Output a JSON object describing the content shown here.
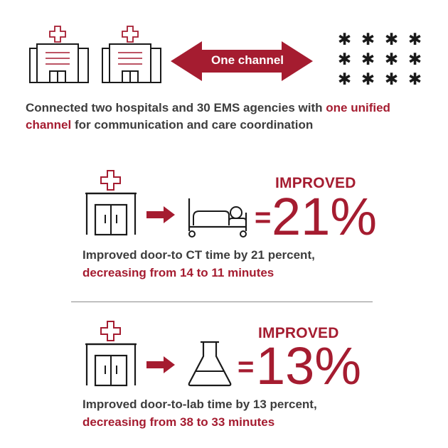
{
  "header": {
    "arrow_label": "One channel",
    "ems_symbol_count": 12,
    "caption_part1": "Connected two hospitals and 30 EMS agencies with ",
    "caption_highlight": "one unified channel",
    "caption_part2": " for communication and care coordination"
  },
  "stats": [
    {
      "improved_label": "IMPROVED",
      "equals": "=",
      "percent": "21%",
      "line1": "Improved door-to CT time by 21 percent,",
      "line2": "decreasing from 14 to 11 minutes"
    },
    {
      "improved_label": "IMPROVED",
      "equals": "=",
      "percent": "13%",
      "line1": "Improved door-to-lab time by 13 percent,",
      "line2": "decreasing from 38 to 33 minutes"
    }
  ],
  "colors": {
    "accent": "#a51c30",
    "text": "#3d3d3d",
    "icon": "#1a1a1a"
  }
}
